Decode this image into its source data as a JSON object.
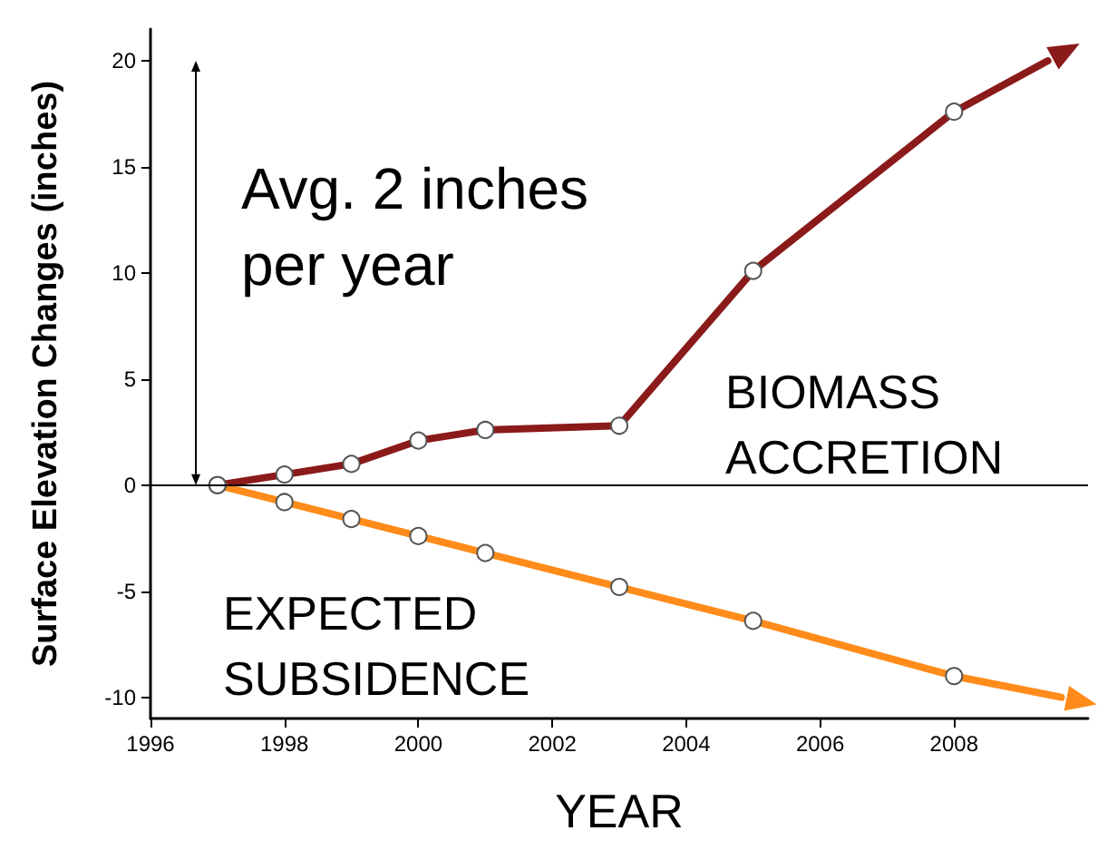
{
  "chart_data": {
    "type": "line",
    "xlabel": "YEAR",
    "ylabel": "Surface Elevation Changes (inches)",
    "xlim": [
      1996,
      2010
    ],
    "xticks": [
      1996,
      1998,
      2000,
      2002,
      2004,
      2006,
      2008
    ],
    "ylim": [
      -11,
      21.5
    ],
    "yticks": [
      -10,
      -5,
      0,
      5,
      10,
      15,
      20
    ],
    "series": [
      {
        "name": "BIOMASS ACCRETION",
        "color": "#8b1a1a",
        "x": [
          1997,
          1998,
          1999,
          2000,
          2001,
          2003,
          2005,
          2008,
          2009.4
        ],
        "values": [
          0,
          0.5,
          1.0,
          2.1,
          2.6,
          2.8,
          10.1,
          17.6,
          20
        ]
      },
      {
        "name": "EXPECTED SUBSIDENCE",
        "color": "#ff8c1a",
        "x": [
          1997,
          1998,
          1999,
          2000,
          2001,
          2003,
          2005,
          2008,
          2009.6
        ],
        "values": [
          0,
          -0.8,
          -1.6,
          -2.4,
          -3.2,
          -4.8,
          -6.4,
          -9,
          -10
        ]
      }
    ],
    "annotations": [
      "Avg. 2 inches per year"
    ],
    "ref_lines": [
      {
        "axis": "y",
        "value": 0,
        "color": "#000000"
      }
    ],
    "marker": "circle",
    "line_style": "solid",
    "grid": false,
    "legend": false
  }
}
